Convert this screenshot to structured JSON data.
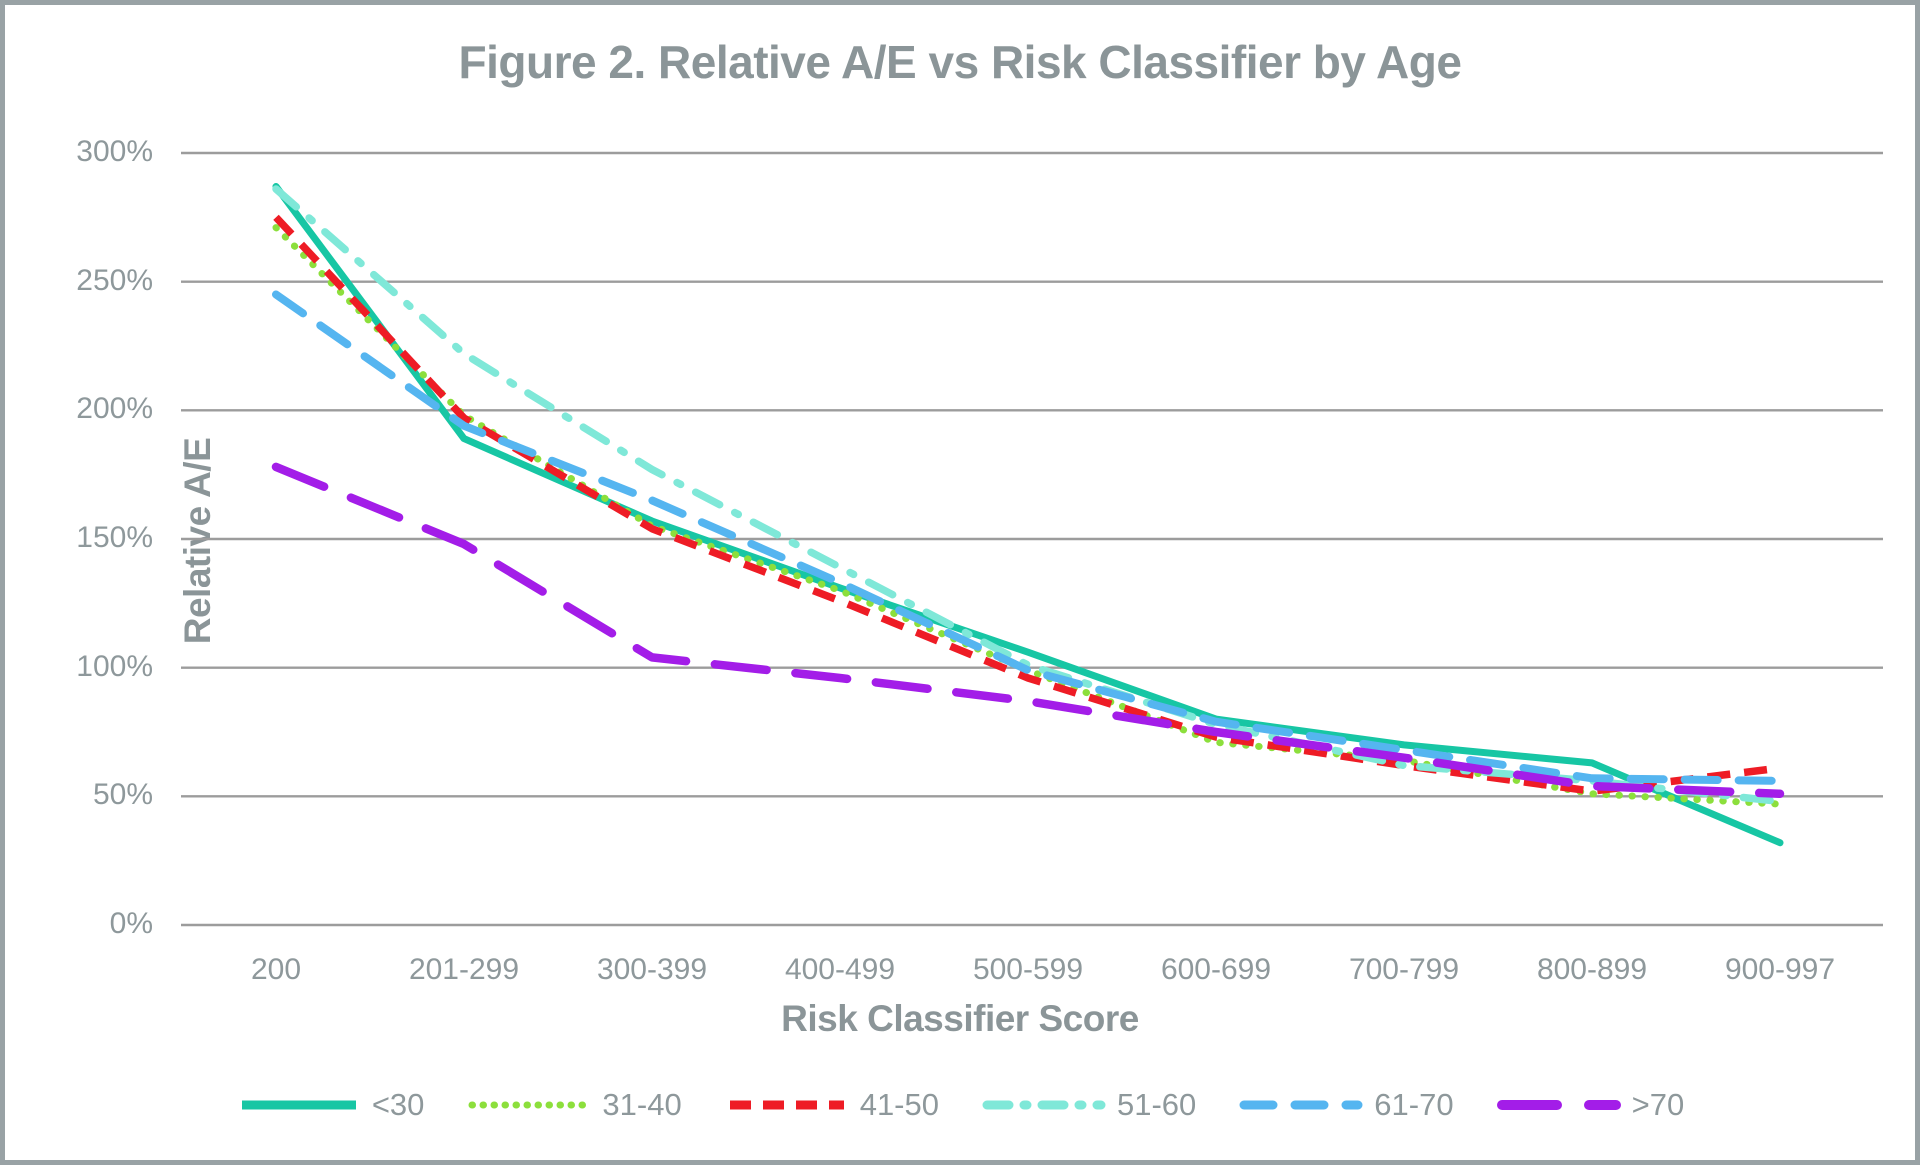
{
  "title": "Figure 2. Relative A/E vs Risk Classifier by Age",
  "chart_data": {
    "type": "line",
    "title": "Figure 2. Relative A/E vs Risk Classifier by Age",
    "xlabel": "Risk Classifier Score",
    "ylabel": "Relative A/E",
    "categories": [
      "200",
      "201-299",
      "300-399",
      "400-499",
      "500-599",
      "600-699",
      "700-799",
      "800-899",
      "900-997"
    ],
    "y_ticks": [
      "300%",
      "250%",
      "200%",
      "150%",
      "100%",
      "50%",
      "0%"
    ],
    "y_tick_values": [
      300,
      250,
      200,
      150,
      100,
      50,
      0
    ],
    "ylim": [
      0,
      300
    ],
    "y_unit": "%",
    "grid": "horizontal",
    "legend_position": "bottom",
    "series": [
      {
        "name": "<30",
        "color": "#17c6a4",
        "style": "solid",
        "values": [
          287,
          189,
          157,
          131,
          106,
          80,
          70,
          63,
          32
        ]
      },
      {
        "name": "31-40",
        "color": "#8cdf3c",
        "style": "dotted",
        "values": [
          271,
          198,
          155,
          130,
          99,
          71,
          64,
          51,
          47
        ]
      },
      {
        "name": "41-50",
        "color": "#ee1c25",
        "style": "dashed-short",
        "values": [
          275,
          197,
          154,
          126,
          96,
          73,
          62,
          52,
          61
        ]
      },
      {
        "name": "51-60",
        "color": "#7fe8d8",
        "style": "dashdot",
        "values": [
          286,
          222,
          177,
          139,
          101,
          78,
          62,
          56,
          48
        ]
      },
      {
        "name": "61-70",
        "color": "#55b5f0",
        "style": "dashed-medium",
        "values": [
          245,
          194,
          165,
          133,
          99,
          79,
          68,
          57,
          56
        ]
      },
      {
        "name": ">70",
        "color": "#a31de8",
        "style": "dashed-long",
        "values": [
          178,
          148,
          104,
          96,
          87,
          75,
          65,
          54,
          51
        ]
      }
    ]
  },
  "colors": {
    "background": "#ffffff",
    "border": "#99a2a5",
    "grid": "#9c9c9c",
    "text": "#8b9598",
    "tick_text": "#8e989b"
  }
}
